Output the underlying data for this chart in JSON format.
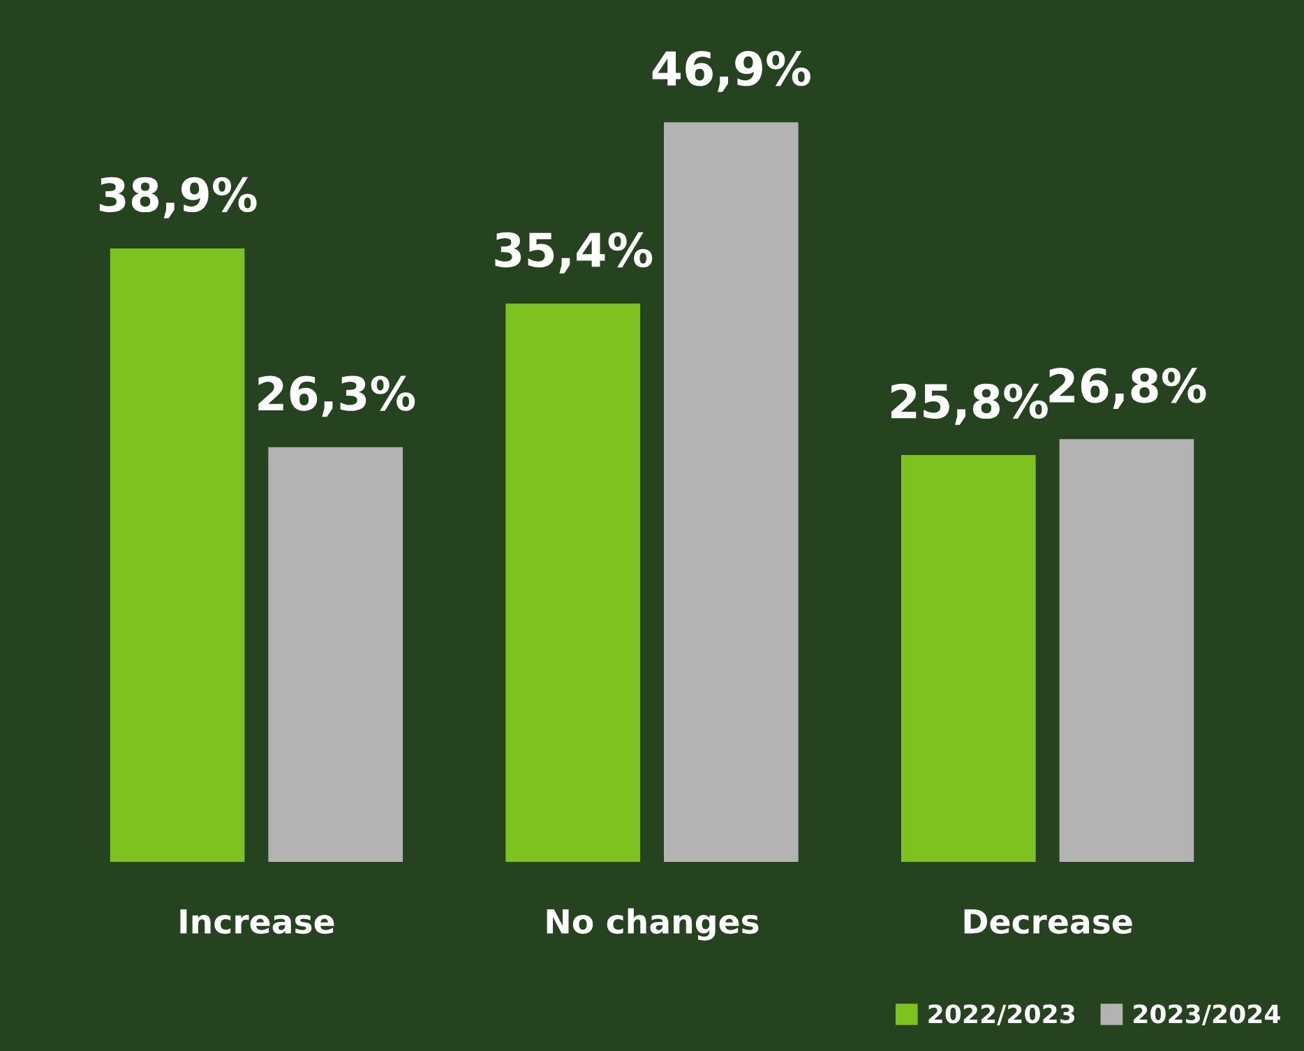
{
  "chart_data": {
    "type": "bar",
    "categories": [
      "Increase",
      "No changes",
      "Decrease"
    ],
    "series": [
      {
        "name": "2022/2023",
        "color": "#7dc21e",
        "values": [
          38.9,
          35.4,
          25.8
        ],
        "value_labels": [
          "38,9%",
          "35,4%",
          "25,8%"
        ]
      },
      {
        "name": "2023/2024",
        "color": "#b3b3b3",
        "values": [
          26.3,
          46.9,
          26.8
        ],
        "value_labels": [
          "26,3%",
          "46,9%",
          "26,8%"
        ]
      }
    ],
    "legend": "bottom right",
    "grid": false
  }
}
